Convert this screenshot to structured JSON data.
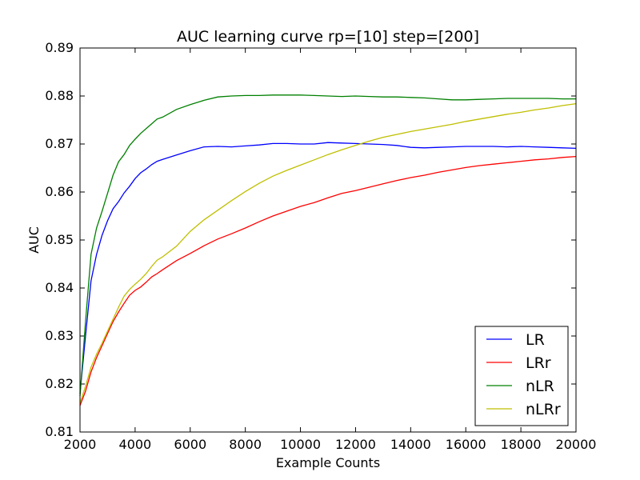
{
  "chart_data": {
    "type": "line",
    "title": "AUC learning curve rp=[10] step=[200]",
    "xlabel": "Example Counts",
    "ylabel": "AUC",
    "xlim": [
      2000,
      20000
    ],
    "ylim": [
      0.81,
      0.89
    ],
    "xticks": [
      2000,
      4000,
      6000,
      8000,
      10000,
      12000,
      14000,
      16000,
      18000,
      20000
    ],
    "xtick_labels": [
      "2000",
      "4000",
      "6000",
      "8000",
      "10000",
      "12000",
      "14000",
      "16000",
      "18000",
      "20000"
    ],
    "yticks": [
      0.81,
      0.82,
      0.83,
      0.84,
      0.85,
      0.86,
      0.87,
      0.88,
      0.89
    ],
    "ytick_labels": [
      "0.81",
      "0.82",
      "0.83",
      "0.84",
      "0.85",
      "0.86",
      "0.87",
      "0.88",
      "0.89"
    ],
    "grid": false,
    "legend_position": "lower-right",
    "x": [
      2000,
      2200,
      2400,
      2600,
      2800,
      3000,
      3200,
      3400,
      3600,
      3800,
      4000,
      4200,
      4400,
      4600,
      4800,
      5000,
      5500,
      6000,
      6500,
      7000,
      7500,
      8000,
      8500,
      9000,
      9500,
      10000,
      10500,
      11000,
      11500,
      12000,
      12500,
      13000,
      13500,
      14000,
      14500,
      15000,
      15500,
      16000,
      16500,
      17000,
      17500,
      18000,
      18500,
      19000,
      19500,
      20000
    ],
    "series": [
      {
        "name": "LR",
        "color": "#0000ff",
        "values": [
          0.818,
          0.83,
          0.8415,
          0.847,
          0.851,
          0.854,
          0.8565,
          0.858,
          0.8598,
          0.8612,
          0.8628,
          0.864,
          0.8648,
          0.8657,
          0.8664,
          0.8668,
          0.8677,
          0.8686,
          0.8694,
          0.8695,
          0.8694,
          0.8696,
          0.8698,
          0.8701,
          0.8701,
          0.87,
          0.87,
          0.8703,
          0.8702,
          0.8701,
          0.87,
          0.8699,
          0.8697,
          0.8693,
          0.8692,
          0.8693,
          0.8694,
          0.8695,
          0.8695,
          0.8695,
          0.8694,
          0.8695,
          0.8694,
          0.8693,
          0.8692,
          0.8691
        ]
      },
      {
        "name": "LRr",
        "color": "#ff0000",
        "values": [
          0.8155,
          0.8185,
          0.8225,
          0.8255,
          0.828,
          0.8305,
          0.833,
          0.835,
          0.8368,
          0.8385,
          0.8395,
          0.8402,
          0.8412,
          0.8423,
          0.843,
          0.8438,
          0.8457,
          0.8472,
          0.8488,
          0.8502,
          0.8513,
          0.8525,
          0.8538,
          0.855,
          0.856,
          0.857,
          0.8578,
          0.8588,
          0.8597,
          0.8603,
          0.861,
          0.8617,
          0.8624,
          0.863,
          0.8635,
          0.8641,
          0.8646,
          0.8651,
          0.8655,
          0.8658,
          0.8661,
          0.8664,
          0.8667,
          0.8669,
          0.8672,
          0.8674
        ]
      },
      {
        "name": "nLR",
        "color": "#008000",
        "values": [
          0.8175,
          0.833,
          0.847,
          0.8525,
          0.856,
          0.8597,
          0.8635,
          0.8663,
          0.8678,
          0.8697,
          0.871,
          0.8722,
          0.8732,
          0.8742,
          0.8752,
          0.8756,
          0.8772,
          0.8782,
          0.8791,
          0.8798,
          0.88,
          0.8801,
          0.8801,
          0.8802,
          0.8802,
          0.8802,
          0.8801,
          0.88,
          0.8799,
          0.88,
          0.8799,
          0.8798,
          0.8798,
          0.8797,
          0.8796,
          0.8794,
          0.8792,
          0.8792,
          0.8793,
          0.8794,
          0.8795,
          0.8795,
          0.8795,
          0.8795,
          0.8794,
          0.8794
        ]
      },
      {
        "name": "nLRr",
        "color": "#bfbf00",
        "values": [
          0.816,
          0.8195,
          0.8235,
          0.8262,
          0.8285,
          0.831,
          0.8335,
          0.836,
          0.8383,
          0.8397,
          0.8408,
          0.8418,
          0.843,
          0.8445,
          0.8458,
          0.8465,
          0.8487,
          0.8518,
          0.8542,
          0.8562,
          0.8582,
          0.8601,
          0.8618,
          0.8633,
          0.8645,
          0.8656,
          0.8667,
          0.8678,
          0.8688,
          0.8697,
          0.8706,
          0.8714,
          0.872,
          0.8726,
          0.8731,
          0.8736,
          0.8741,
          0.8747,
          0.8752,
          0.8757,
          0.8762,
          0.8766,
          0.8771,
          0.8775,
          0.878,
          0.8784
        ]
      }
    ]
  }
}
